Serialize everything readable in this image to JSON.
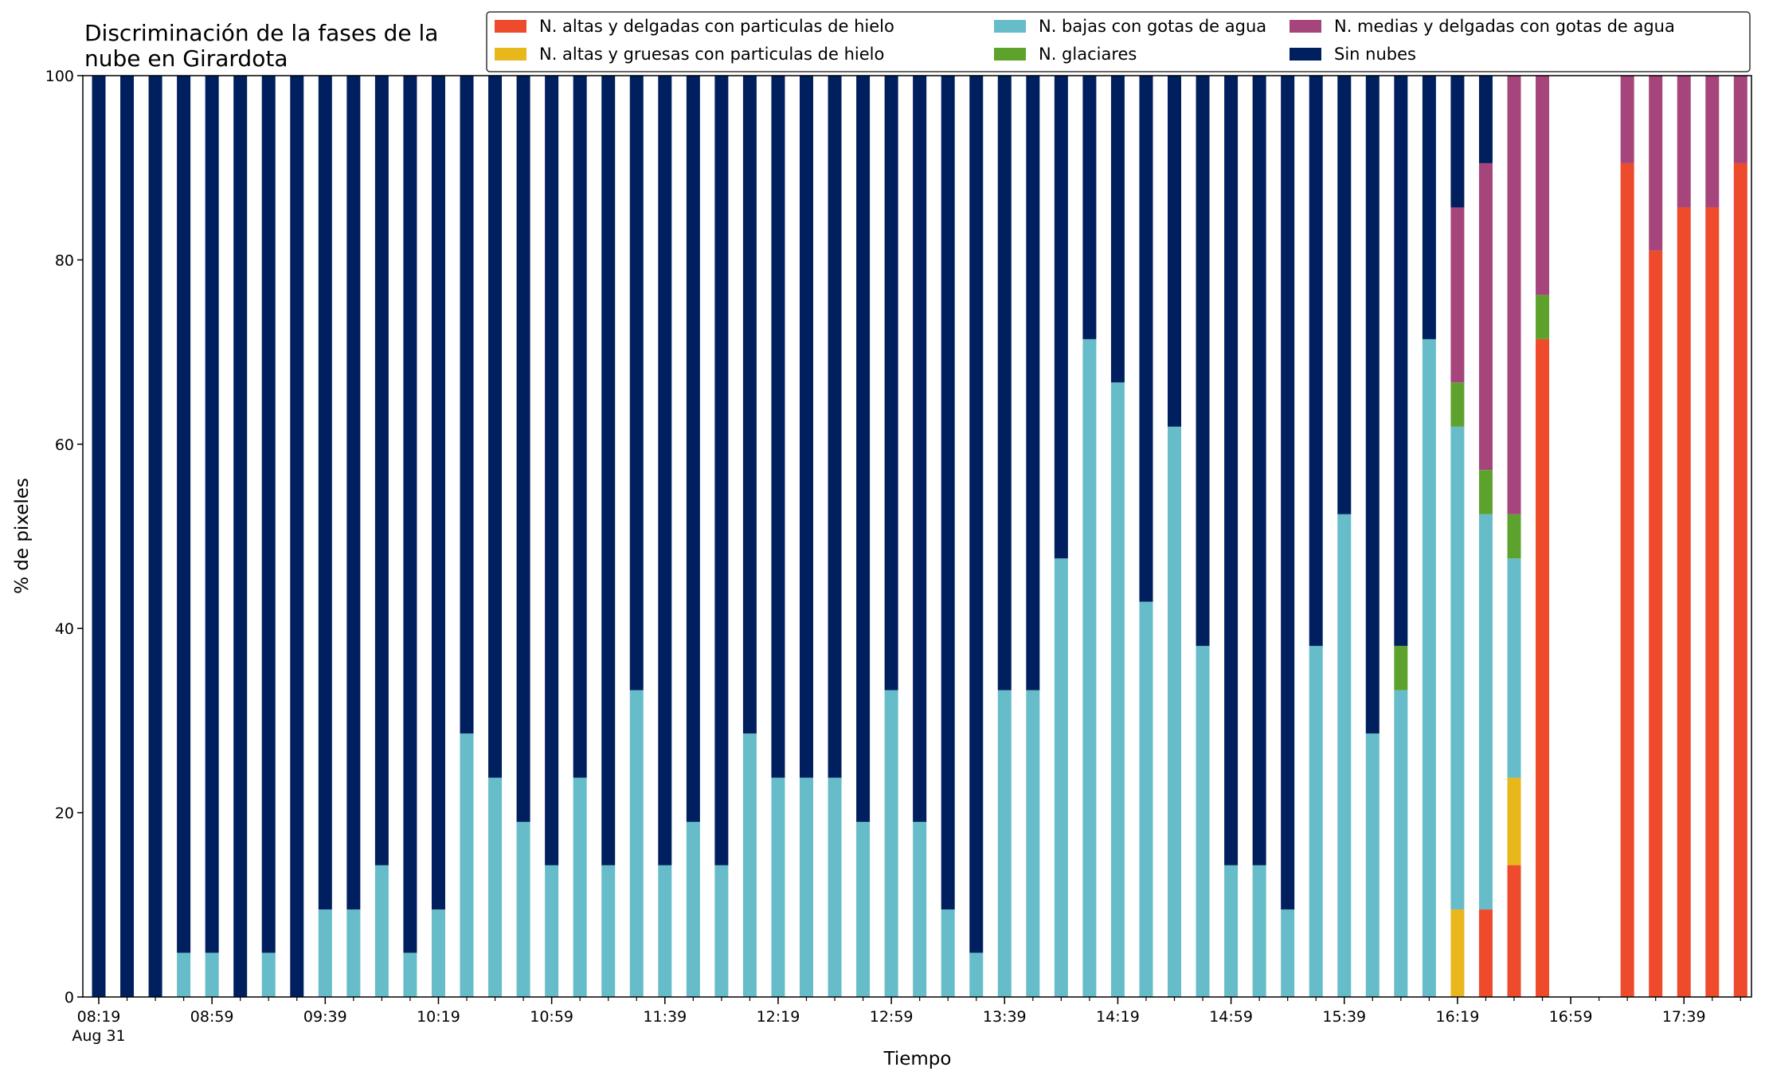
{
  "chart_data": {
    "type": "bar",
    "stacked": true,
    "title_lines": [
      "Discriminación de la fases de la",
      "nube en Girardota"
    ],
    "xlabel": "Tiempo",
    "ylabel": "% de pixeles",
    "ylim": [
      0,
      100
    ],
    "yticks": [
      0,
      20,
      40,
      60,
      80,
      100
    ],
    "xticks": [
      {
        "i": 0,
        "label": "08:19",
        "sub": "Aug 31"
      },
      {
        "i": 4,
        "label": "08:59"
      },
      {
        "i": 8,
        "label": "09:39"
      },
      {
        "i": 12,
        "label": "10:19"
      },
      {
        "i": 16,
        "label": "10:59"
      },
      {
        "i": 20,
        "label": "11:39"
      },
      {
        "i": 24,
        "label": "12:19"
      },
      {
        "i": 28,
        "label": "12:59"
      },
      {
        "i": 32,
        "label": "13:39"
      },
      {
        "i": 36,
        "label": "14:19"
      },
      {
        "i": 40,
        "label": "14:59"
      },
      {
        "i": 44,
        "label": "15:39"
      },
      {
        "i": 48,
        "label": "16:19"
      },
      {
        "i": 52,
        "label": "16:59"
      },
      {
        "i": 56,
        "label": "17:39"
      }
    ],
    "legend_placement": "top-right",
    "series": [
      {
        "name": "N. altas y delgadas con particulas de hielo",
        "color": "#ee4a2c",
        "values": [
          0,
          0,
          0,
          0,
          0,
          0,
          0,
          0,
          0,
          0,
          0,
          0,
          0,
          0,
          0,
          0,
          0,
          0,
          0,
          0,
          0,
          0,
          0,
          0,
          0,
          0,
          0,
          0,
          0,
          0,
          0,
          0,
          0,
          0,
          0,
          0,
          0,
          0,
          0,
          0,
          0,
          0,
          0,
          0,
          0,
          0,
          0,
          0,
          0,
          9.5,
          14.3,
          71.4,
          0,
          0,
          90.5,
          81,
          85.7,
          85.7,
          90.5
        ]
      },
      {
        "name": "N. altas y gruesas con particulas de hielo",
        "color": "#e8b71c",
        "values": [
          0,
          0,
          0,
          0,
          0,
          0,
          0,
          0,
          0,
          0,
          0,
          0,
          0,
          0,
          0,
          0,
          0,
          0,
          0,
          0,
          0,
          0,
          0,
          0,
          0,
          0,
          0,
          0,
          0,
          0,
          0,
          0,
          0,
          0,
          0,
          0,
          0,
          0,
          0,
          0,
          0,
          0,
          0,
          0,
          0,
          0,
          0,
          0,
          9.5,
          0,
          9.5,
          0,
          0,
          0,
          0,
          0,
          0,
          0,
          0
        ]
      },
      {
        "name": "N. bajas con gotas de agua",
        "color": "#66bcc9",
        "values": [
          0,
          0,
          0,
          4.8,
          4.8,
          0,
          4.8,
          0,
          9.5,
          9.5,
          14.3,
          4.8,
          9.5,
          28.6,
          23.8,
          19,
          14.3,
          23.8,
          14.3,
          33.3,
          14.3,
          19,
          14.3,
          28.6,
          23.8,
          23.8,
          23.8,
          19,
          33.3,
          19,
          9.5,
          4.8,
          33.3,
          33.3,
          47.6,
          71.4,
          66.7,
          42.9,
          61.9,
          38.1,
          14.3,
          14.3,
          9.5,
          38.1,
          52.4,
          28.6,
          33.3,
          71.4,
          52.4,
          42.9,
          23.8,
          0,
          0,
          0,
          0,
          0,
          0,
          0,
          0
        ]
      },
      {
        "name": "N. glaciares",
        "color": "#5ea22e",
        "values": [
          0,
          0,
          0,
          0,
          0,
          0,
          0,
          0,
          0,
          0,
          0,
          0,
          0,
          0,
          0,
          0,
          0,
          0,
          0,
          0,
          0,
          0,
          0,
          0,
          0,
          0,
          0,
          0,
          0,
          0,
          0,
          0,
          0,
          0,
          0,
          0,
          0,
          0,
          0,
          0,
          0,
          0,
          0,
          0,
          0,
          0,
          4.8,
          0,
          4.8,
          4.8,
          4.8,
          4.8,
          0,
          0,
          0,
          0,
          0,
          0,
          0
        ]
      },
      {
        "name": "N. medias y delgadas con gotas de agua",
        "color": "#a5457b",
        "values": [
          0,
          0,
          0,
          0,
          0,
          0,
          0,
          0,
          0,
          0,
          0,
          0,
          0,
          0,
          0,
          0,
          0,
          0,
          0,
          0,
          0,
          0,
          0,
          0,
          0,
          0,
          0,
          0,
          0,
          0,
          0,
          0,
          0,
          0,
          0,
          0,
          0,
          0,
          0,
          0,
          0,
          0,
          0,
          0,
          0,
          0,
          0,
          0,
          19,
          33.3,
          47.6,
          23.8,
          0,
          0,
          9.5,
          19,
          14.3,
          14.3,
          9.5
        ]
      },
      {
        "name": "Sin nubes",
        "color": "#001f5e",
        "values": [
          100,
          100,
          100,
          95.2,
          95.2,
          100,
          95.2,
          100,
          90.5,
          90.5,
          85.7,
          95.2,
          90.5,
          71.4,
          76.2,
          81,
          85.7,
          76.2,
          85.7,
          66.7,
          85.7,
          81,
          85.7,
          71.4,
          76.2,
          76.2,
          76.2,
          81,
          66.7,
          81,
          90.5,
          95.2,
          66.7,
          66.7,
          52.4,
          28.6,
          33.3,
          57.1,
          38.1,
          61.9,
          85.7,
          85.7,
          90.5,
          61.9,
          47.6,
          71.4,
          61.9,
          28.6,
          14.3,
          9.5,
          0,
          0,
          0,
          0,
          0,
          0,
          0,
          0,
          0
        ]
      }
    ]
  }
}
